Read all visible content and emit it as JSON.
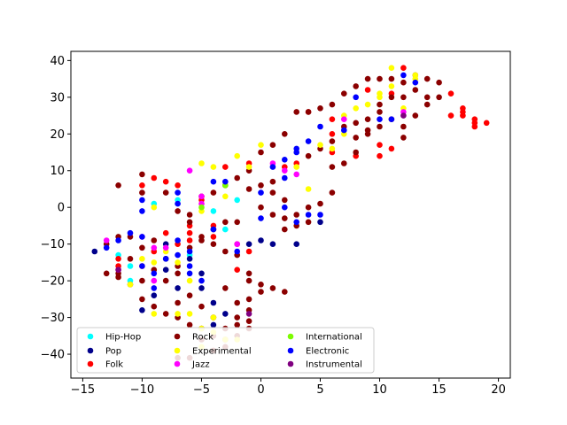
{
  "chart_data": {
    "type": "scatter",
    "title": "",
    "xlabel": "",
    "ylabel": "",
    "xlim": [
      -16,
      21
    ],
    "ylim": [
      -46.5,
      42.5
    ],
    "x_ticks": [
      -15,
      -10,
      -5,
      0,
      5,
      10,
      15,
      20
    ],
    "y_ticks": [
      -40,
      -30,
      -20,
      -10,
      0,
      10,
      20,
      30,
      40
    ],
    "x_tick_labels": [
      "−15",
      "−10",
      "−5",
      "0",
      "5",
      "10",
      "15",
      "20"
    ],
    "y_tick_labels": [
      "−40",
      "−30",
      "−20",
      "−10",
      "0",
      "10",
      "20",
      "30",
      "40"
    ],
    "grid": false,
    "legend_placement": "lower-left",
    "series": [
      {
        "name": "Hip-Hop",
        "color": "#00ffff",
        "points": [
          [
            -12,
            -13
          ],
          [
            -11,
            -16
          ],
          [
            -9,
            1
          ],
          [
            -7,
            2
          ],
          [
            -6,
            -13
          ],
          [
            -4,
            -1
          ],
          [
            -3,
            -6
          ],
          [
            -2,
            2
          ],
          [
            -8,
            -14
          ],
          [
            -11,
            -20
          ]
        ]
      },
      {
        "name": "Pop",
        "color": "#00008b",
        "points": [
          [
            -14,
            -12
          ],
          [
            -10,
            -28
          ],
          [
            -9,
            -24
          ],
          [
            -8,
            -10
          ],
          [
            -7,
            -22
          ],
          [
            -6,
            -14
          ],
          [
            -5,
            -18
          ],
          [
            -4,
            -26
          ],
          [
            -3,
            -29
          ],
          [
            -4,
            -32
          ],
          [
            -1,
            -10
          ],
          [
            1,
            -10
          ],
          [
            3,
            -10
          ],
          [
            5,
            -4
          ],
          [
            -8,
            -17
          ],
          [
            -5,
            -22
          ],
          [
            0,
            -9
          ]
        ]
      },
      {
        "name": "Folk",
        "color": "#ff0000",
        "points": [
          [
            -10,
            6
          ],
          [
            -9,
            8
          ],
          [
            -8,
            7
          ],
          [
            -7,
            6
          ],
          [
            -8,
            -7
          ],
          [
            -7,
            -10
          ],
          [
            -6,
            -5
          ],
          [
            -6,
            -7
          ],
          [
            -4,
            -5
          ],
          [
            -4,
            -8
          ],
          [
            -2,
            -10
          ],
          [
            -1,
            -12
          ],
          [
            -2,
            -17
          ],
          [
            -3,
            11
          ],
          [
            -1,
            12
          ],
          [
            -5,
            2
          ],
          [
            4,
            26
          ],
          [
            6,
            24
          ],
          [
            9,
            32
          ],
          [
            11,
            31
          ],
          [
            12,
            38
          ],
          [
            16,
            31
          ],
          [
            17,
            27
          ],
          [
            17,
            26
          ],
          [
            17,
            25
          ],
          [
            18,
            23
          ],
          [
            18,
            22
          ],
          [
            19,
            23
          ],
          [
            16,
            25
          ],
          [
            18,
            24
          ],
          [
            10,
            17
          ],
          [
            10,
            14
          ],
          [
            11,
            16
          ],
          [
            6,
            15
          ],
          [
            8,
            14
          ],
          [
            3,
            12
          ],
          [
            2,
            11
          ],
          [
            6,
            20
          ],
          [
            -12,
            -16
          ],
          [
            -10,
            -16
          ],
          [
            -12,
            -14
          ],
          [
            -9,
            -12
          ],
          [
            -6,
            -9
          ]
        ]
      },
      {
        "name": "Rock",
        "color": "#8b0000",
        "points": [
          [
            -12,
            6
          ],
          [
            -10,
            9
          ],
          [
            -10,
            4
          ],
          [
            -8,
            4
          ],
          [
            -7,
            -1
          ],
          [
            -6,
            -2
          ],
          [
            -6,
            -4
          ],
          [
            -5,
            3
          ],
          [
            -5,
            -8
          ],
          [
            -4,
            -6
          ],
          [
            -4,
            -10
          ],
          [
            -3,
            -4
          ],
          [
            -3,
            -12
          ],
          [
            -2,
            -13
          ],
          [
            -2,
            -4
          ],
          [
            -1,
            -18
          ],
          [
            -1,
            -20
          ],
          [
            -1,
            -25
          ],
          [
            0,
            -21
          ],
          [
            0,
            -23
          ],
          [
            1,
            -22
          ],
          [
            2,
            -23
          ],
          [
            -1,
            -28
          ],
          [
            -2,
            -30
          ],
          [
            -3,
            -33
          ],
          [
            -4,
            -30
          ],
          [
            -5,
            -27
          ],
          [
            -6,
            -24
          ],
          [
            -7,
            -26
          ],
          [
            -8,
            -29
          ],
          [
            -9,
            -27
          ],
          [
            -10,
            -25
          ],
          [
            -11,
            -21
          ],
          [
            -12,
            -19
          ],
          [
            -13,
            -18
          ],
          [
            -13,
            -10
          ],
          [
            -12,
            -8
          ],
          [
            -11,
            -8
          ],
          [
            -10,
            -11
          ],
          [
            -9,
            -9
          ],
          [
            -8,
            -20
          ],
          [
            -6,
            -32
          ],
          [
            -5,
            -36
          ],
          [
            -4,
            -39
          ],
          [
            -6,
            -41
          ],
          [
            -7,
            -41
          ],
          [
            -3,
            -36
          ],
          [
            -2,
            -35
          ],
          [
            0,
            6
          ],
          [
            1,
            4
          ],
          [
            1,
            7
          ],
          [
            2,
            2
          ],
          [
            2,
            -6
          ],
          [
            3,
            -2
          ],
          [
            4,
            -4
          ],
          [
            4,
            0
          ],
          [
            5,
            1
          ],
          [
            6,
            4
          ],
          [
            6,
            11
          ],
          [
            7,
            12
          ],
          [
            8,
            15
          ],
          [
            8,
            19
          ],
          [
            9,
            20
          ],
          [
            9,
            24
          ],
          [
            10,
            26
          ],
          [
            10,
            28
          ],
          [
            11,
            30
          ],
          [
            12,
            30
          ],
          [
            13,
            32
          ],
          [
            14,
            30
          ],
          [
            12,
            34
          ],
          [
            11,
            35
          ],
          [
            10,
            35
          ],
          [
            9,
            35
          ],
          [
            8,
            33
          ],
          [
            7,
            31
          ],
          [
            6,
            28
          ],
          [
            5,
            27
          ],
          [
            4,
            26
          ],
          [
            3,
            26
          ],
          [
            2,
            20
          ],
          [
            1,
            17
          ],
          [
            0,
            15
          ],
          [
            -1,
            10
          ],
          [
            -2,
            8
          ],
          [
            -3,
            6
          ],
          [
            -4,
            4
          ],
          [
            -1,
            5
          ],
          [
            0,
            0
          ],
          [
            1,
            -2
          ],
          [
            2,
            -3
          ],
          [
            3,
            -5
          ],
          [
            4,
            14
          ],
          [
            5,
            16
          ],
          [
            6,
            18
          ],
          [
            7,
            22
          ],
          [
            8,
            23
          ],
          [
            9,
            21
          ],
          [
            10,
            22
          ],
          [
            11,
            24
          ],
          [
            12,
            19
          ],
          [
            12,
            22
          ],
          [
            13,
            25
          ],
          [
            14,
            28
          ],
          [
            15,
            30
          ],
          [
            13,
            36
          ],
          [
            14,
            35
          ],
          [
            15,
            34
          ],
          [
            -12,
            -18
          ],
          [
            -11,
            -14
          ],
          [
            -10,
            -20
          ],
          [
            -9,
            -17
          ],
          [
            -8,
            -14
          ],
          [
            -7,
            -16
          ],
          [
            -7,
            -18
          ],
          [
            -6,
            -11
          ],
          [
            -5,
            -9
          ],
          [
            -3,
            -22
          ],
          [
            -2,
            -26
          ],
          [
            -1,
            -31
          ],
          [
            -1,
            -33
          ],
          [
            -2,
            -32
          ],
          [
            -4,
            -35
          ],
          [
            -3,
            -38
          ],
          [
            -5,
            -33
          ],
          [
            -7,
            -30
          ]
        ]
      },
      {
        "name": "Experimental",
        "color": "#ffff00",
        "points": [
          [
            -11,
            -21
          ],
          [
            -10,
            -14
          ],
          [
            -9,
            -15
          ],
          [
            -8,
            -12
          ],
          [
            -7,
            -15
          ],
          [
            -6,
            -20
          ],
          [
            -6,
            -29
          ],
          [
            -5,
            -33
          ],
          [
            -5,
            -38
          ],
          [
            -4,
            -34
          ],
          [
            -3,
            -36
          ],
          [
            -2,
            -36
          ],
          [
            -4,
            -30
          ],
          [
            -9,
            -29
          ],
          [
            -7,
            -29
          ],
          [
            -5,
            12
          ],
          [
            -4,
            11
          ],
          [
            -5,
            -1
          ],
          [
            -2,
            14
          ],
          [
            0,
            17
          ],
          [
            3,
            11
          ],
          [
            4,
            5
          ],
          [
            5,
            17
          ],
          [
            6,
            16
          ],
          [
            7,
            20
          ],
          [
            7,
            25
          ],
          [
            8,
            27
          ],
          [
            9,
            28
          ],
          [
            10,
            30
          ],
          [
            10,
            31
          ],
          [
            11,
            33
          ],
          [
            11,
            38
          ],
          [
            13,
            35
          ],
          [
            13,
            36
          ],
          [
            12,
            27
          ],
          [
            -1,
            11
          ],
          [
            -9,
            0
          ],
          [
            -3,
            3
          ]
        ]
      },
      {
        "name": "Jazz",
        "color": "#ff00ff",
        "points": [
          [
            -13,
            -9
          ],
          [
            -12,
            -17
          ],
          [
            -10,
            -8
          ],
          [
            -9,
            -11
          ],
          [
            -9,
            -20
          ],
          [
            -8,
            -11
          ],
          [
            -6,
            10
          ],
          [
            -5,
            3
          ],
          [
            -5,
            1
          ],
          [
            1,
            12
          ],
          [
            2,
            10
          ],
          [
            3,
            9
          ],
          [
            7,
            24
          ],
          [
            12,
            26
          ],
          [
            -2,
            -10
          ]
        ]
      },
      {
        "name": "International",
        "color": "#7cfc00",
        "points": [
          [
            -5,
            0
          ],
          [
            -3,
            6
          ]
        ]
      },
      {
        "name": "Electronic",
        "color": "#0000ff",
        "points": [
          [
            -13,
            -11
          ],
          [
            -12,
            -9
          ],
          [
            -11,
            -7
          ],
          [
            -10,
            -8
          ],
          [
            -10,
            -16
          ],
          [
            -9,
            -22
          ],
          [
            -9,
            -18
          ],
          [
            -8,
            -14
          ],
          [
            -7,
            -9
          ],
          [
            -7,
            -13
          ],
          [
            -6,
            -12
          ],
          [
            -6,
            -16
          ],
          [
            -7,
            4
          ],
          [
            -7,
            1
          ],
          [
            -4,
            7
          ],
          [
            -3,
            7
          ],
          [
            -4,
            -6
          ],
          [
            0,
            4
          ],
          [
            1,
            11
          ],
          [
            2,
            13
          ],
          [
            2,
            8
          ],
          [
            2,
            0
          ],
          [
            3,
            16
          ],
          [
            3,
            15
          ],
          [
            4,
            18
          ],
          [
            5,
            22
          ],
          [
            7,
            21
          ],
          [
            8,
            30
          ],
          [
            10,
            24
          ],
          [
            11,
            24
          ],
          [
            12,
            36
          ],
          [
            13,
            34
          ],
          [
            -10,
            2
          ],
          [
            -10,
            -1
          ],
          [
            -6,
            -18
          ],
          [
            -2,
            -12
          ],
          [
            0,
            -3
          ],
          [
            3,
            -4
          ],
          [
            4,
            -2
          ],
          [
            5,
            -2
          ],
          [
            -5,
            -20
          ]
        ]
      },
      {
        "name": "Instrumental",
        "color": "#800080",
        "points": [
          [
            12,
            25
          ],
          [
            -1,
            -29
          ],
          [
            -12,
            -17
          ]
        ]
      }
    ]
  }
}
